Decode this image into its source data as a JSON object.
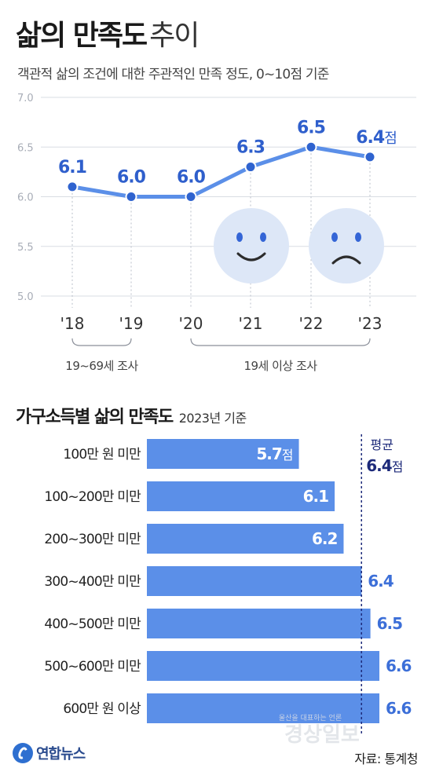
{
  "header": {
    "title_bold": "삶의 만족도",
    "title_light": "추이",
    "subtitle": "객관적 삶의 조건에 대한 주관적인 만족 정도, 0~10점 기준"
  },
  "section2": {
    "title_bold": "가구소득별 삶의 만족도",
    "title_light": "2023년 기준"
  },
  "footer": {
    "logo_text": "연합뉴스",
    "source": "자료: 통계청",
    "watermark_left": "울산을 대표하는 언론",
    "watermark_right": "경상일보"
  },
  "chart_data": [
    {
      "type": "line",
      "x": [
        "'18",
        "'19",
        "'20",
        "'21",
        "'22",
        "'23"
      ],
      "values": [
        6.1,
        6.0,
        6.0,
        6.3,
        6.5,
        6.4
      ],
      "value_labels": [
        "6.1",
        "6.0",
        "6.0",
        "6.3",
        "6.5",
        "6.4"
      ],
      "value_unit": "점",
      "ylim": [
        5.0,
        7.0
      ],
      "yticks": [
        "5.0",
        "5.5",
        "6.0",
        "6.5",
        "7.0"
      ],
      "grid": true,
      "brackets": [
        {
          "label": "19~69세 조사",
          "from": "'18",
          "to": "'19"
        },
        {
          "label": "19세 이상 조사",
          "from": "'20",
          "to": "'23"
        }
      ],
      "colors": {
        "line": "#5b8fe8",
        "marker": "#2f63cf",
        "label": "#2f5fcc",
        "face": "#dde7f7"
      }
    },
    {
      "type": "bar",
      "orientation": "horizontal",
      "categories": [
        "100만 원 미만",
        "100~200만 미만",
        "200~300만 미만",
        "300~400만 미만",
        "400~500만 미만",
        "500~600만 미만",
        "600만 원 이상"
      ],
      "values": [
        5.7,
        6.1,
        6.2,
        6.4,
        6.5,
        6.6,
        6.6
      ],
      "value_labels": [
        "5.7",
        "6.1",
        "6.2",
        "6.4",
        "6.5",
        "6.6",
        "6.6"
      ],
      "value_unit": "점",
      "average": {
        "label": "평균",
        "value": 6.4,
        "value_label": "6.4",
        "unit": "점"
      },
      "colors": {
        "bar": "#5b8fe8",
        "outside_label": "#3c6fd8",
        "average": "#1d2a7a"
      }
    }
  ]
}
